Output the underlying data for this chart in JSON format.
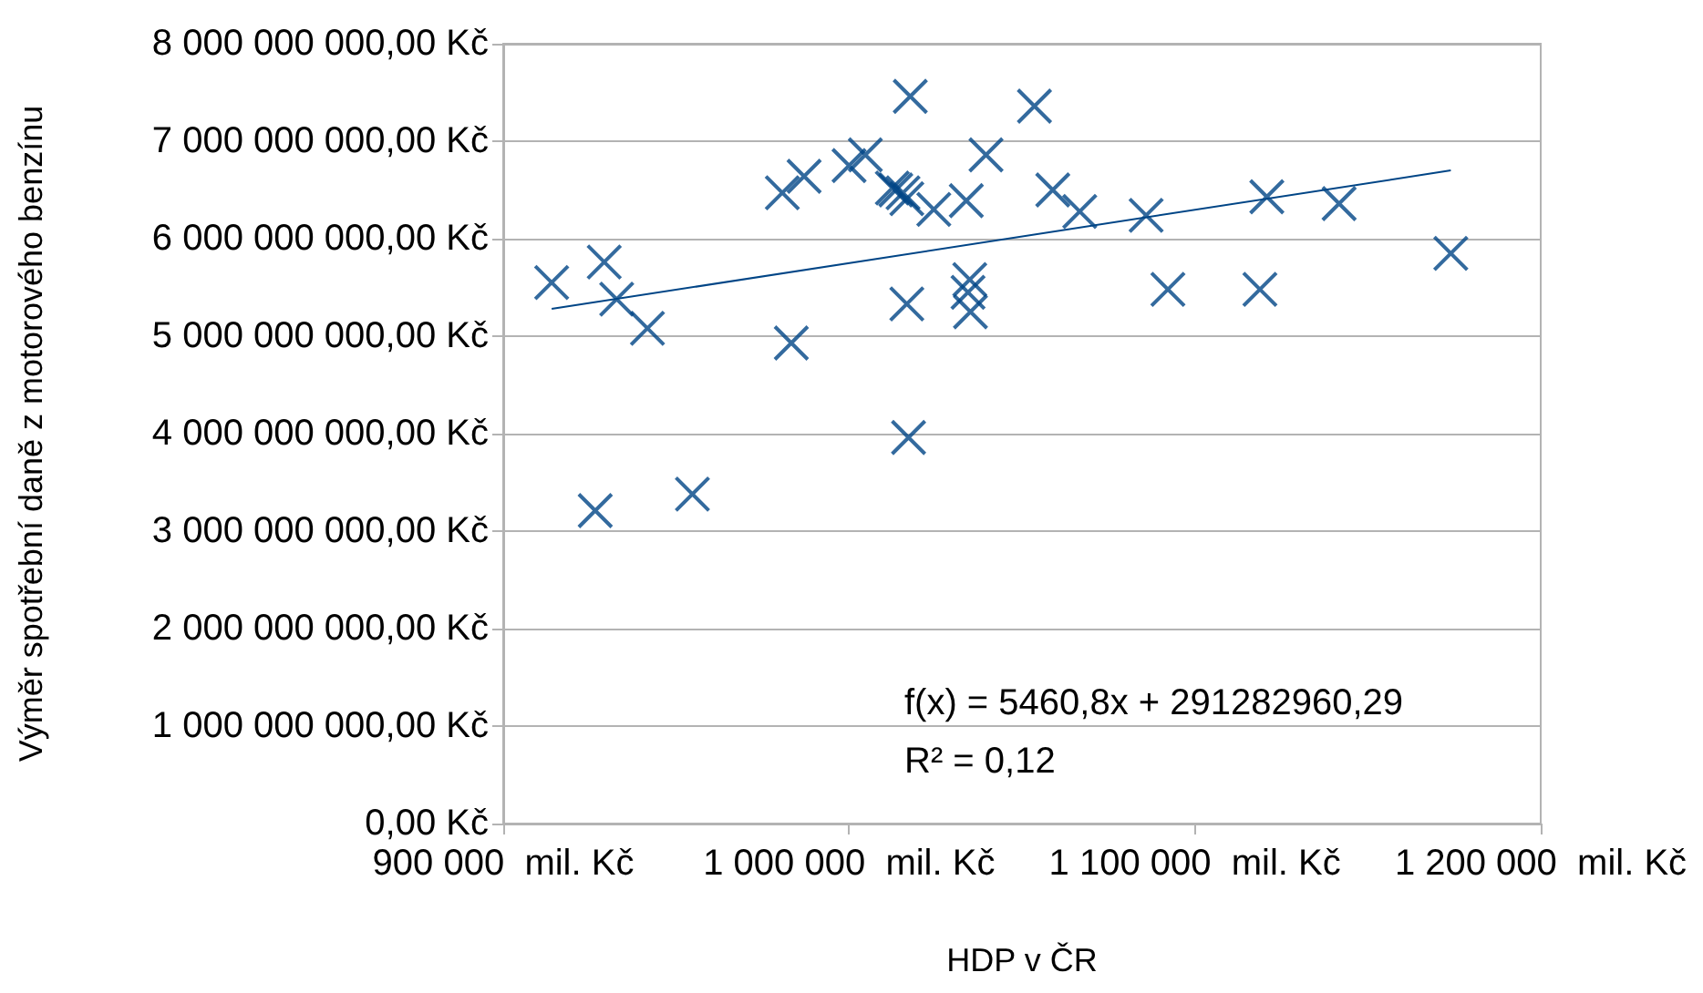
{
  "chart_data": {
    "type": "scatter",
    "xlabel": "HDP v ČR",
    "ylabel": "Výměr spotřební daně z motorového benzínu",
    "annotations": [
      "f(x) = 5460,8x + 291282960,29",
      "R² = 0,12"
    ],
    "series": [
      {
        "color": "#004586",
        "marker": "cross",
        "x": [
          914000,
          929200,
          932800,
          941700,
          926600,
          954700,
          983300,
          980700,
          987000,
          1000000,
          1004700,
          1012500,
          1013500,
          1015600,
          1016700,
          1017700,
          1016700,
          1017200,
          1024500,
          1033900,
          1039600,
          1034900,
          1034400,
          1035100,
          1053600,
          1058900,
          1066700,
          1085900,
          1092200,
          1120800,
          1118800,
          1141700,
          1174000
        ],
        "values": [
          5550000000,
          5760000000,
          5380000000,
          5080000000,
          3210000000,
          3380000000,
          4930000000,
          6470000000,
          6640000000,
          6750000000,
          6860000000,
          6520000000,
          6500000000,
          6470000000,
          6410000000,
          7460000000,
          5330000000,
          3960000000,
          6300000000,
          6390000000,
          6860000000,
          5580000000,
          5450000000,
          5250000000,
          7360000000,
          6500000000,
          6280000000,
          6240000000,
          5480000000,
          6430000000,
          5480000000,
          6360000000,
          5850000000
        ]
      },
      {
        "type": "line",
        "color": "#004586",
        "marker": "none",
        "x": [
          914000,
          1174000
        ],
        "values": [
          5280000000,
          6700000000
        ]
      }
    ],
    "xlim": [
      900000,
      1200000
    ],
    "xticks": [
      {
        "value": 900000,
        "label": "900 000  mil. Kč"
      },
      {
        "value": 1000000,
        "label": "1 000 000  mil. Kč"
      },
      {
        "value": 1100000,
        "label": "1 100 000  mil. Kč"
      },
      {
        "value": 1200000,
        "label": "1 200 000  mil. Kč"
      }
    ],
    "ylim": [
      0,
      8000000000
    ],
    "yticks": [
      {
        "value": 0,
        "label": "0,00 Kč"
      },
      {
        "value": 1000000000,
        "label": "1 000 000 000,00 Kč"
      },
      {
        "value": 2000000000,
        "label": "2 000 000 000,00 Kč"
      },
      {
        "value": 3000000000,
        "label": "3 000 000 000,00 Kč"
      },
      {
        "value": 4000000000,
        "label": "4 000 000 000,00 Kč"
      },
      {
        "value": 5000000000,
        "label": "5 000 000 000,00 Kč"
      },
      {
        "value": 6000000000,
        "label": "6 000 000 000,00 Kč"
      },
      {
        "value": 7000000000,
        "label": "7 000 000 000,00 Kč"
      },
      {
        "value": 8000000000,
        "label": "8 000 000 000,00 Kč"
      }
    ],
    "grid": "y"
  }
}
